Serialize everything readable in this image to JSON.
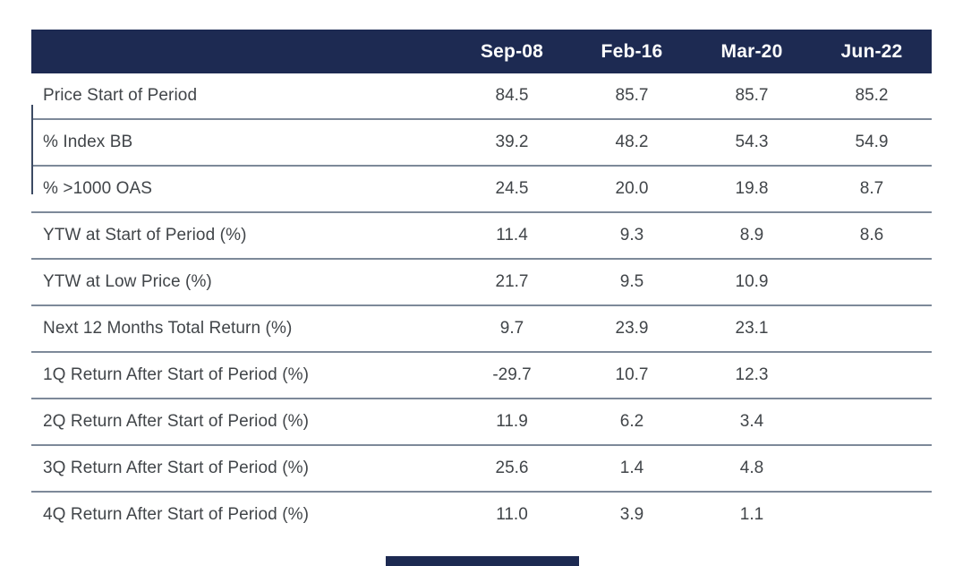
{
  "table": {
    "columns": [
      "",
      "Sep-08",
      "Feb-16",
      "Mar-20",
      "Jun-22"
    ],
    "rows": [
      {
        "label": "Price Start of Period",
        "values": [
          "84.5",
          "85.7",
          "85.7",
          "85.2"
        ]
      },
      {
        "label": "% Index BB",
        "values": [
          "39.2",
          "48.2",
          "54.3",
          "54.9"
        ]
      },
      {
        "label": "% >1000 OAS",
        "values": [
          "24.5",
          "20.0",
          "19.8",
          "8.7"
        ]
      },
      {
        "label": "YTW at Start of Period (%)",
        "values": [
          "11.4",
          "9.3",
          "8.9",
          "8.6"
        ]
      },
      {
        "label": "YTW at Low Price (%)",
        "values": [
          "21.7",
          "9.5",
          "10.9",
          ""
        ]
      },
      {
        "label": "Next 12 Months Total Return (%)",
        "values": [
          "9.7",
          "23.9",
          "23.1",
          ""
        ]
      },
      {
        "label": "1Q Return After Start of Period (%)",
        "values": [
          "-29.7",
          "10.7",
          "12.3",
          ""
        ]
      },
      {
        "label": "2Q Return After Start of Period (%)",
        "values": [
          "11.9",
          "6.2",
          "3.4",
          ""
        ]
      },
      {
        "label": "3Q Return After Start of Period (%)",
        "values": [
          "25.6",
          "1.4",
          "4.8",
          ""
        ]
      },
      {
        "label": "4Q Return After Start of Period (%)",
        "values": [
          "11.0",
          "3.9",
          "1.1",
          ""
        ]
      }
    ]
  },
  "colors": {
    "header_bg": "#1d2a52",
    "header_text": "#ffffff",
    "divider": "#7d8999",
    "body_text": "#414549",
    "background": "#ffffff"
  },
  "chart_data": {
    "type": "table",
    "title": "",
    "columns": [
      "",
      "Sep-08",
      "Feb-16",
      "Mar-20",
      "Jun-22"
    ],
    "rows": [
      [
        "Price Start of Period",
        84.5,
        85.7,
        85.7,
        85.2
      ],
      [
        "% Index BB",
        39.2,
        48.2,
        54.3,
        54.9
      ],
      [
        "% >1000 OAS",
        24.5,
        20.0,
        19.8,
        8.7
      ],
      [
        "YTW at Start of Period (%)",
        11.4,
        9.3,
        8.9,
        8.6
      ],
      [
        "YTW at Low Price (%)",
        21.7,
        9.5,
        10.9,
        null
      ],
      [
        "Next 12 Months Total Return (%)",
        9.7,
        23.9,
        23.1,
        null
      ],
      [
        "1Q Return After Start of Period (%)",
        -29.7,
        10.7,
        12.3,
        null
      ],
      [
        "2Q Return After Start of Period (%)",
        11.9,
        6.2,
        3.4,
        null
      ],
      [
        "3Q Return After Start of Period (%)",
        25.6,
        1.4,
        4.8,
        null
      ],
      [
        "4Q Return After Start of Period (%)",
        11.0,
        3.9,
        1.1,
        null
      ]
    ],
    "layout_hints": {
      "header_style": "dark-navy-bar",
      "row_dividers": true,
      "grid": "horizontal-only"
    }
  }
}
